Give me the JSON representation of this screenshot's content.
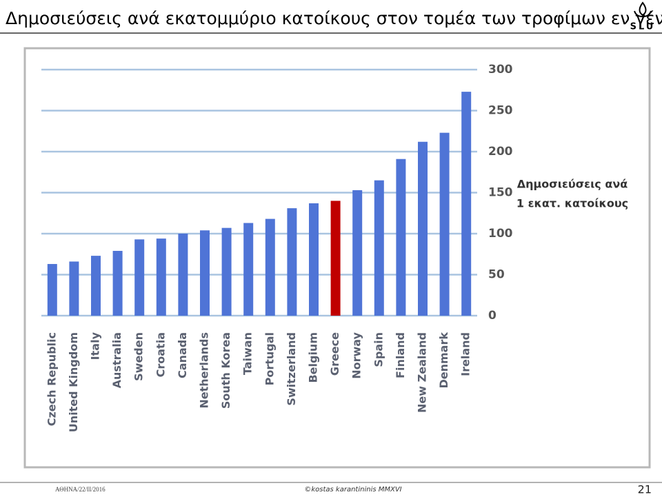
{
  "slide": {
    "title": "Δημοσιεύσεις ανά εκατομμύριο κατοίκους στον τομέα των τροφίμων εν γένει",
    "logo": "SLU",
    "footer_left": "ΑΘΗΝΑ/22/ΙΙ/2016",
    "footer_center": "©kostas karantininis MMXVI",
    "page_number": "21"
  },
  "chart_data": {
    "type": "bar",
    "ylabel": [
      "Δημοσιεύσεις ανά",
      "1 εκατ. κατοίκους"
    ],
    "categories": [
      "Czech Republic",
      "United Kingdom",
      "Italy",
      "Australia",
      "Sweden",
      "Croatia",
      "Canada",
      "Netherlands",
      "South Korea",
      "Taiwan",
      "Portugal",
      "Switzerland",
      "Belgium",
      "Greece",
      "Norway",
      "Spain",
      "Finland",
      "New Zealand",
      "Denmark",
      "Ireland"
    ],
    "values": [
      63,
      66,
      73,
      79,
      93,
      94,
      100,
      104,
      107,
      113,
      118,
      131,
      137,
      140,
      153,
      165,
      191,
      212,
      223,
      273
    ],
    "colors": [
      "#4f74d6",
      "#4f74d6",
      "#4f74d6",
      "#4f74d6",
      "#4f74d6",
      "#4f74d6",
      "#4f74d6",
      "#4f74d6",
      "#4f74d6",
      "#4f74d6",
      "#4f74d6",
      "#4f74d6",
      "#4f74d6",
      "#c00000",
      "#4f74d6",
      "#4f74d6",
      "#4f74d6",
      "#4f74d6",
      "#4f74d6",
      "#4f74d6"
    ],
    "ylim": [
      0,
      300
    ],
    "yticks": [
      0,
      50,
      100,
      150,
      200,
      250,
      300
    ],
    "grid": true
  }
}
